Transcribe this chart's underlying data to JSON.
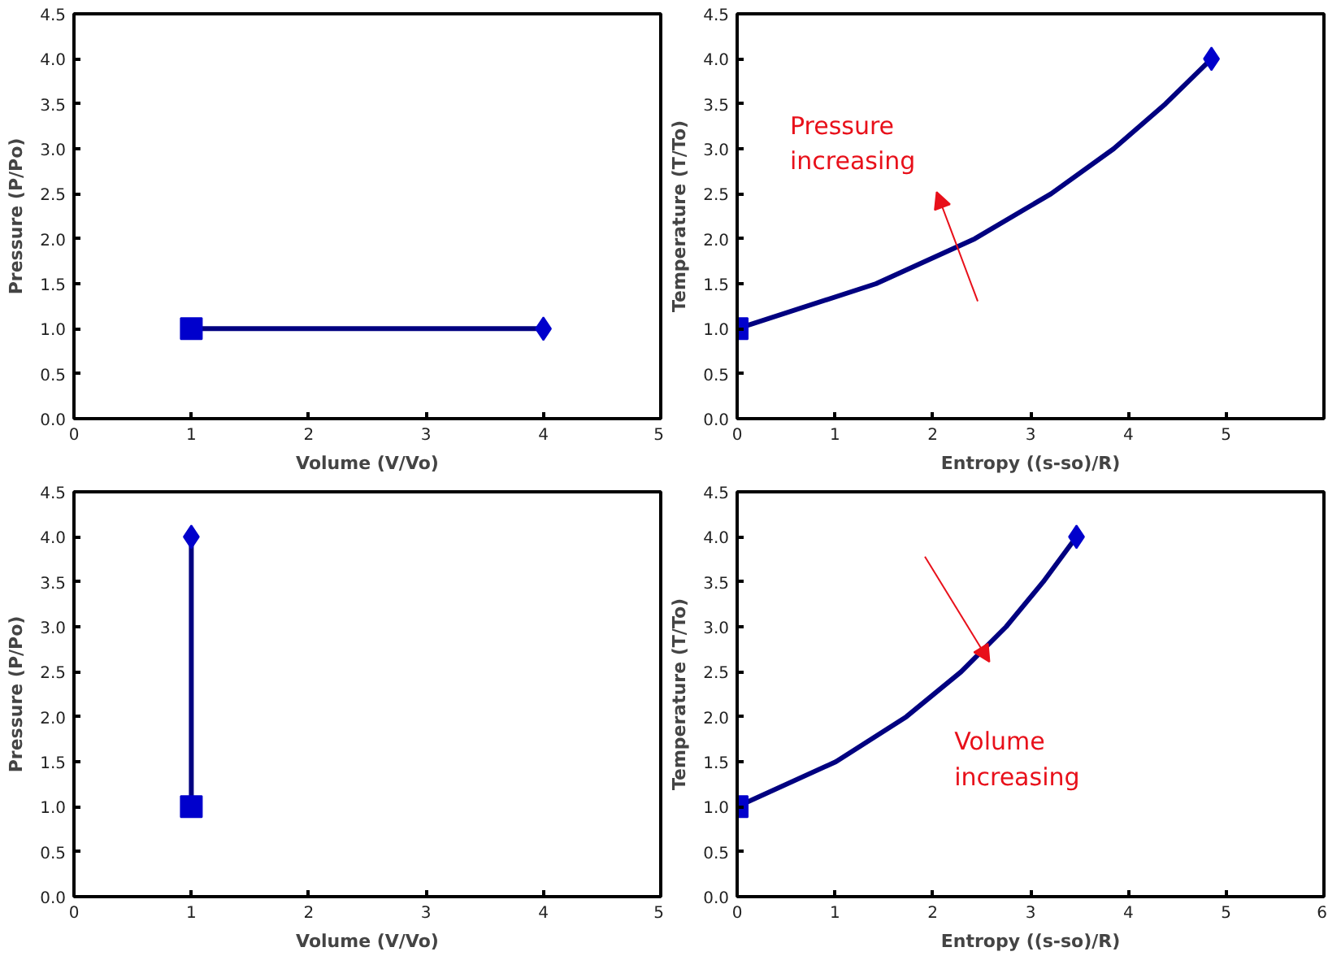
{
  "chart_data": [
    {
      "type": "line",
      "xlabel": "Volume (V/Vo)",
      "ylabel": "Pressure (P/Po)",
      "xlim": [
        0,
        5
      ],
      "ylim": [
        0,
        4.5
      ],
      "xticks": [
        0,
        1,
        2,
        3,
        4,
        5
      ],
      "yticks": [
        {
          "value": 0,
          "label": "0.0"
        },
        {
          "value": 0.5,
          "label": "0.5"
        },
        {
          "value": 1,
          "label": "1.0"
        },
        {
          "value": 1.5,
          "label": "1.5"
        },
        {
          "value": 2,
          "label": "2.0"
        },
        {
          "value": 2.5,
          "label": "2.5"
        },
        {
          "value": 3,
          "label": "3.0"
        },
        {
          "value": 3.5,
          "label": "3.5"
        },
        {
          "value": 4,
          "label": "4.0"
        },
        {
          "value": 4.5,
          "label": "4.5"
        }
      ],
      "grid": false,
      "series": [
        {
          "color": "#000080",
          "x": [
            1,
            4
          ],
          "values": [
            1,
            1
          ]
        },
        {
          "type": "scatter",
          "marker": "square",
          "color": "#0000cc",
          "x": [
            1
          ],
          "values": [
            1
          ]
        },
        {
          "type": "scatter",
          "marker": "diamond",
          "color": "#0000cc",
          "x": [
            4
          ],
          "values": [
            1
          ]
        }
      ]
    },
    {
      "type": "line",
      "xlabel": "Entropy ((s-so)/R)",
      "ylabel": "Temperature (T/To)",
      "xlim": [
        0,
        6
      ],
      "ylim": [
        0,
        4.5
      ],
      "xticks": [
        0,
        1,
        2,
        3,
        4,
        5
      ],
      "yticks": [
        {
          "value": 0,
          "label": "0.0"
        },
        {
          "value": 0.5,
          "label": "0.5"
        },
        {
          "value": 1,
          "label": "1.0"
        },
        {
          "value": 1.5,
          "label": "1.5"
        },
        {
          "value": 2,
          "label": "2.0"
        },
        {
          "value": 2.5,
          "label": "2.5"
        },
        {
          "value": 3,
          "label": "3.0"
        },
        {
          "value": 3.5,
          "label": "3.5"
        },
        {
          "value": 4,
          "label": "4.0"
        },
        {
          "value": 4.5,
          "label": "4.5"
        }
      ],
      "grid": false,
      "annotations": [
        "Pressure increasing"
      ],
      "series": [
        {
          "color": "#000080",
          "x": [
            0,
            1.42,
            2.43,
            3.21,
            3.85,
            4.38,
            4.85
          ],
          "values": [
            1,
            1.5,
            2,
            2.5,
            3,
            3.5,
            4
          ]
        },
        {
          "type": "scatter",
          "marker": "square",
          "color": "#0000cc",
          "x": [
            0
          ],
          "values": [
            1
          ]
        },
        {
          "type": "scatter",
          "marker": "diamond",
          "color": "#0000cc",
          "x": [
            4.85
          ],
          "values": [
            4
          ]
        }
      ]
    },
    {
      "type": "line",
      "xlabel": "Volume (V/Vo)",
      "ylabel": "Pressure (P/Po)",
      "xlim": [
        0,
        5
      ],
      "ylim": [
        0,
        4.5
      ],
      "xticks": [
        0,
        1,
        2,
        3,
        4,
        5
      ],
      "yticks": [
        {
          "value": 0,
          "label": "0.0"
        },
        {
          "value": 0.5,
          "label": "0.5"
        },
        {
          "value": 1,
          "label": "1.0"
        },
        {
          "value": 1.5,
          "label": "1.5"
        },
        {
          "value": 2,
          "label": "2.0"
        },
        {
          "value": 2.5,
          "label": "2.5"
        },
        {
          "value": 3,
          "label": "3.0"
        },
        {
          "value": 3.5,
          "label": "3.5"
        },
        {
          "value": 4,
          "label": "4.0"
        },
        {
          "value": 4.5,
          "label": "4.5"
        }
      ],
      "grid": false,
      "series": [
        {
          "color": "#000080",
          "x": [
            1,
            1
          ],
          "values": [
            1,
            4
          ]
        },
        {
          "type": "scatter",
          "marker": "square",
          "color": "#0000cc",
          "x": [
            1
          ],
          "values": [
            1
          ]
        },
        {
          "type": "scatter",
          "marker": "diamond",
          "color": "#0000cc",
          "x": [
            1
          ],
          "values": [
            4
          ]
        }
      ]
    },
    {
      "type": "line",
      "xlabel": "Entropy ((s-so)/R)",
      "ylabel": "Temperature (T/To)",
      "xlim": [
        0,
        6
      ],
      "ylim": [
        0,
        4.5
      ],
      "xticks": [
        0,
        1,
        2,
        3,
        4,
        5,
        6
      ],
      "yticks": [
        {
          "value": 0,
          "label": "0.0"
        },
        {
          "value": 0.5,
          "label": "0.5"
        },
        {
          "value": 1,
          "label": "1.0"
        },
        {
          "value": 1.5,
          "label": "1.5"
        },
        {
          "value": 2,
          "label": "2.0"
        },
        {
          "value": 2.5,
          "label": "2.5"
        },
        {
          "value": 3,
          "label": "3.0"
        },
        {
          "value": 3.5,
          "label": "3.5"
        },
        {
          "value": 4,
          "label": "4.0"
        },
        {
          "value": 4.5,
          "label": "4.5"
        }
      ],
      "grid": false,
      "annotations": [
        "Volume increasing"
      ],
      "series": [
        {
          "color": "#000080",
          "x": [
            0,
            1.01,
            1.73,
            2.29,
            2.75,
            3.13,
            3.47
          ],
          "values": [
            1,
            1.5,
            2,
            2.5,
            3,
            3.5,
            4
          ]
        },
        {
          "type": "scatter",
          "marker": "square",
          "color": "#0000cc",
          "x": [
            0
          ],
          "values": [
            1
          ]
        },
        {
          "type": "scatter",
          "marker": "diamond",
          "color": "#0000cc",
          "x": [
            3.47
          ],
          "values": [
            4
          ]
        }
      ]
    }
  ]
}
